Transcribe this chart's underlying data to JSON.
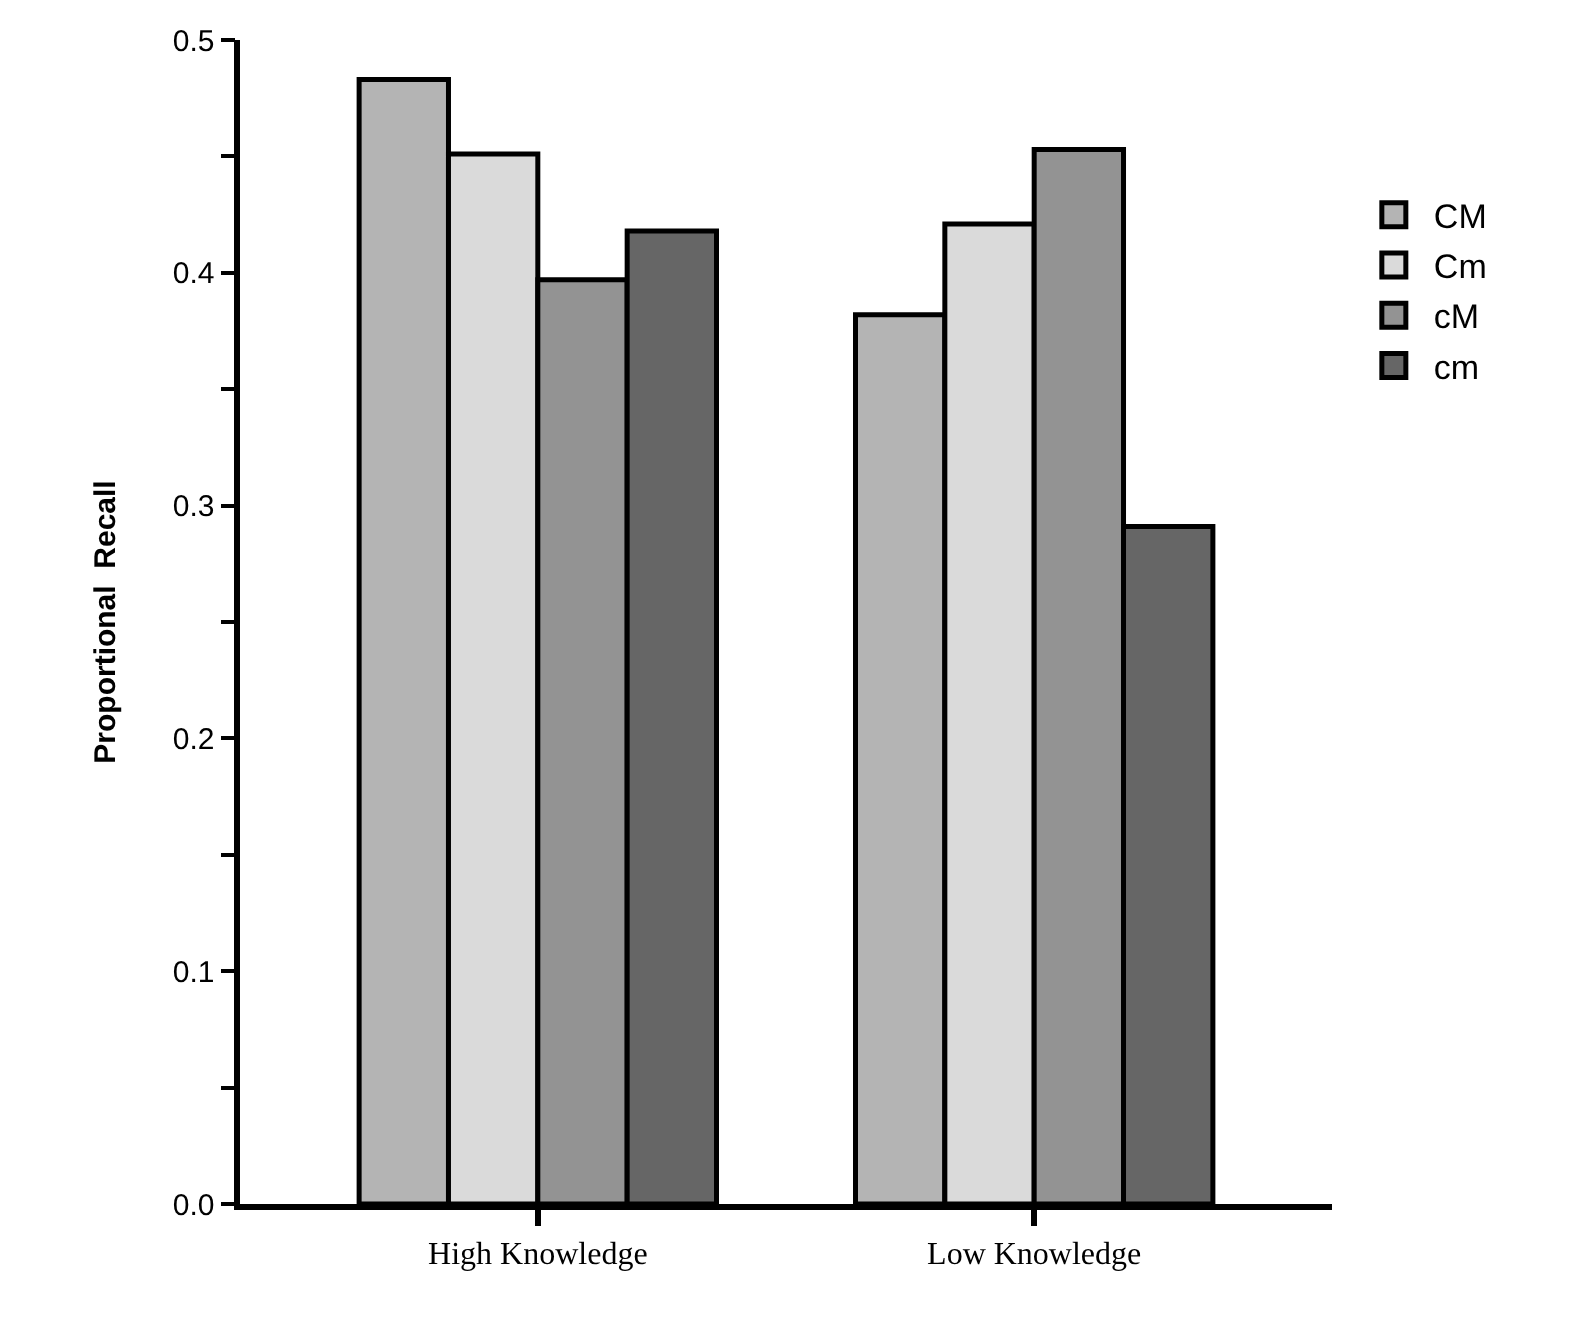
{
  "chart_data": {
    "type": "bar",
    "ylabel": "Proportional  Recall",
    "categories": [
      "High Knowledge",
      "Low Knowledge"
    ],
    "series": [
      {
        "name": "CM",
        "color": "#b4b4b4",
        "values": [
          0.483,
          0.382
        ]
      },
      {
        "name": "Cm",
        "color": "#dadada",
        "values": [
          0.451,
          0.421
        ]
      },
      {
        "name": "cM",
        "color": "#939393",
        "values": [
          0.397,
          0.453
        ]
      },
      {
        "name": "cm",
        "color": "#666666",
        "values": [
          0.418,
          0.291
        ]
      }
    ],
    "ylim": [
      0,
      0.5
    ],
    "yticks": [
      {
        "value": 0,
        "label": "0.0"
      },
      {
        "value": 0.05,
        "label": null
      },
      0.1,
      {
        "value": 0.15,
        "label": null
      },
      0.2,
      {
        "value": 0.25,
        "label": null
      },
      0.3,
      {
        "value": 0.35,
        "label": null
      },
      0.4,
      {
        "value": 0.45,
        "label": null
      },
      0.5
    ],
    "legend": "top right"
  }
}
